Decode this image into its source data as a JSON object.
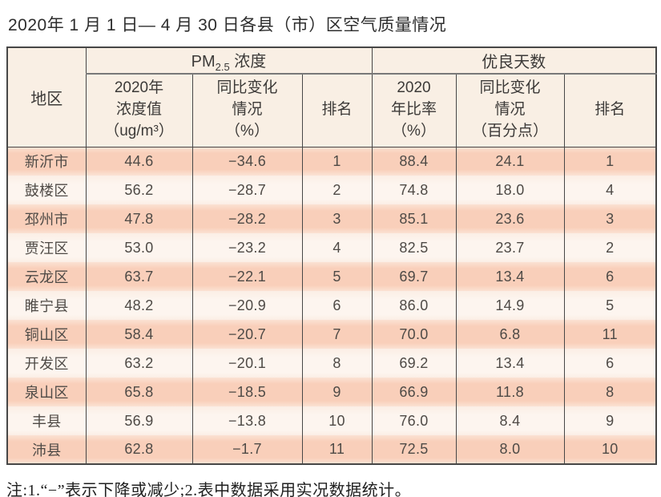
{
  "page": {
    "title": "2020年 1 月 1 日— 4 月 30 日各县（市）区空气质量情况",
    "note": "注:1.“−”表示下降或减少;2.表中数据采用实况数据统计。"
  },
  "table": {
    "region_header": "地区",
    "group_pm": {
      "prefix": "PM",
      "sub": "2.5",
      "suffix": " 浓度"
    },
    "group_good": "优良天数",
    "sub_headers": {
      "pm_value": "2020年\n浓度值\n（ug/m³）",
      "pm_change": "同比变化\n情况\n（%）",
      "pm_rank": "排名",
      "good_ratio": "2020\n年比率\n（%）",
      "good_change": "同比变化\n情况\n（百分点）",
      "good_rank": "排名"
    },
    "rows": [
      {
        "region": "新沂市",
        "pm_value": "44.6",
        "pm_change": "−34.6",
        "pm_rank": "1",
        "good_ratio": "88.4",
        "good_change": "24.1",
        "good_rank": "1"
      },
      {
        "region": "鼓楼区",
        "pm_value": "56.2",
        "pm_change": "−28.7",
        "pm_rank": "2",
        "good_ratio": "74.8",
        "good_change": "18.0",
        "good_rank": "4"
      },
      {
        "region": "邳州市",
        "pm_value": "47.8",
        "pm_change": "−28.2",
        "pm_rank": "3",
        "good_ratio": "85.1",
        "good_change": "23.6",
        "good_rank": "3"
      },
      {
        "region": "贾汪区",
        "pm_value": "53.0",
        "pm_change": "−23.2",
        "pm_rank": "4",
        "good_ratio": "82.5",
        "good_change": "23.7",
        "good_rank": "2"
      },
      {
        "region": "云龙区",
        "pm_value": "63.7",
        "pm_change": "−22.1",
        "pm_rank": "5",
        "good_ratio": "69.7",
        "good_change": "13.4",
        "good_rank": "6"
      },
      {
        "region": "睢宁县",
        "pm_value": "48.2",
        "pm_change": "−20.9",
        "pm_rank": "6",
        "good_ratio": "86.0",
        "good_change": "14.9",
        "good_rank": "5"
      },
      {
        "region": "铜山区",
        "pm_value": "58.4",
        "pm_change": "−20.7",
        "pm_rank": "7",
        "good_ratio": "70.0",
        "good_change": "6.8",
        "good_rank": "11"
      },
      {
        "region": "开发区",
        "pm_value": "63.2",
        "pm_change": "−20.1",
        "pm_rank": "8",
        "good_ratio": "69.2",
        "good_change": "13.4",
        "good_rank": "6"
      },
      {
        "region": "泉山区",
        "pm_value": "65.8",
        "pm_change": "−18.5",
        "pm_rank": "9",
        "good_ratio": "66.9",
        "good_change": "11.8",
        "good_rank": "8"
      },
      {
        "region": "丰县",
        "pm_value": "56.9",
        "pm_change": "−13.8",
        "pm_rank": "10",
        "good_ratio": "76.0",
        "good_change": "8.4",
        "good_rank": "9"
      },
      {
        "region": "沛县",
        "pm_value": "62.8",
        "pm_change": "−1.7",
        "pm_rank": "11",
        "good_ratio": "72.5",
        "good_change": "8.0",
        "good_rank": "10"
      }
    ],
    "colors": {
      "header_bg": "#f9efe4",
      "row_odd_bg": "#f9cfba",
      "row_even_bg": "#fdf5ef",
      "border": "#474747",
      "text": "#4e4a46"
    }
  }
}
